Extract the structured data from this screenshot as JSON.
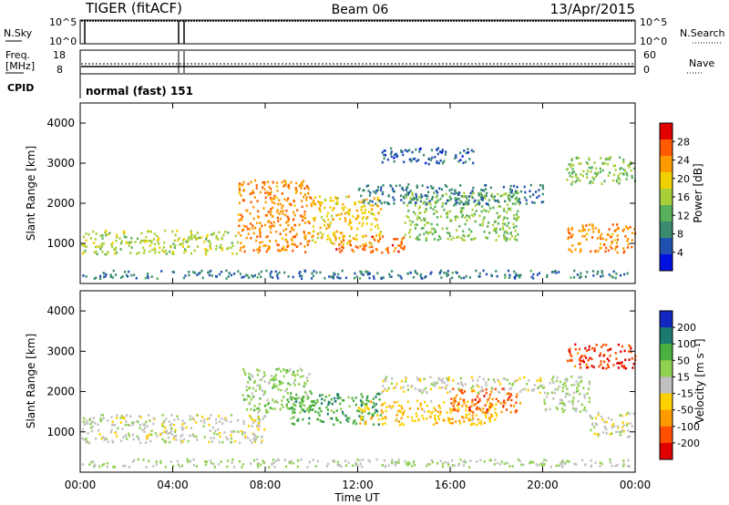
{
  "header": {
    "station": "TIGER (fitACF)",
    "beam": "Beam 06",
    "date": "13/Apr/2015"
  },
  "panels": {
    "nsky": {
      "label": "N.Sky",
      "tick_hi": "10^5",
      "tick_lo": "10^0",
      "right_label": "N.Search"
    },
    "freq": {
      "label_top": "Freq.",
      "label_unit": "[MHz]",
      "ticks_left": [
        "18",
        "8"
      ],
      "ticks_right": [
        "60",
        "0"
      ],
      "right_label": "Nave"
    },
    "cpid": {
      "label": "CPID",
      "text": "normal (fast)  151"
    }
  },
  "colors": {
    "power": [
      "#0010e0",
      "#2050b0",
      "#3a8a70",
      "#5ab05a",
      "#a8cf3a",
      "#f0d000",
      "#ff9a00",
      "#ff5a00",
      "#e00000"
    ],
    "velocity": [
      "#1028c0",
      "#1a7a70",
      "#4cb040",
      "#90d050",
      "#c0c0c0",
      "#ffd000",
      "#ff9a00",
      "#ff5000",
      "#e00000"
    ]
  },
  "chart_data": [
    {
      "type": "heatmap",
      "name": "power",
      "ylabel": "Slant Range [km]",
      "yticks": [
        "4000",
        "3000",
        "2000",
        "1000"
      ],
      "ylim": [
        0,
        4500
      ],
      "xlim": [
        0,
        24
      ],
      "colorbar": {
        "label": "Power [dB]",
        "ticks": [
          "28",
          "24",
          "20",
          "16",
          "12",
          "8",
          "4"
        ],
        "range": [
          0,
          32
        ]
      },
      "scatter_regions": [
        {
          "x": [
            0,
            6.8
          ],
          "y": [
            750,
            1350
          ],
          "level": 16
        },
        {
          "x": [
            6.8,
            10
          ],
          "y": [
            800,
            2600
          ],
          "level": 24
        },
        {
          "x": [
            10,
            13
          ],
          "y": [
            1000,
            2200
          ],
          "level": 20
        },
        {
          "x": [
            11,
            14
          ],
          "y": [
            800,
            1200
          ],
          "level": 26
        },
        {
          "x": [
            14,
            19
          ],
          "y": [
            1100,
            2300
          ],
          "level": 14
        },
        {
          "x": [
            12,
            20
          ],
          "y": [
            2000,
            2500
          ],
          "level": 8
        },
        {
          "x": [
            13,
            17
          ],
          "y": [
            3000,
            3400
          ],
          "level": 6
        },
        {
          "x": [
            21,
            24
          ],
          "y": [
            800,
            1500
          ],
          "level": 24
        },
        {
          "x": [
            21,
            24
          ],
          "y": [
            2500,
            3200
          ],
          "level": 14
        },
        {
          "x": [
            0,
            24
          ],
          "y": [
            150,
            350
          ],
          "level": 8
        }
      ]
    },
    {
      "type": "heatmap",
      "name": "velocity",
      "ylabel": "Slant Range [km]",
      "yticks": [
        "4000",
        "3000",
        "2000",
        "1000"
      ],
      "ylim": [
        0,
        4500
      ],
      "xlim": [
        0,
        24
      ],
      "xlabel": "Time UT",
      "xticks": [
        "00:00",
        "04:00",
        "08:00",
        "12:00",
        "16:00",
        "20:00",
        "00:00"
      ],
      "colorbar": {
        "label": "Velocity [m s⁻¹]",
        "ticks": [
          "200",
          "100",
          "50",
          "15",
          "-15",
          "-50",
          "-100",
          "-200"
        ],
        "range": [
          -250,
          250
        ]
      },
      "scatter_regions": [
        {
          "x": [
            0,
            8
          ],
          "y": [
            750,
            1450
          ],
          "level": 0
        },
        {
          "x": [
            7,
            10
          ],
          "y": [
            1500,
            2600
          ],
          "level": 60
        },
        {
          "x": [
            9,
            13
          ],
          "y": [
            1200,
            2000
          ],
          "level": 120
        },
        {
          "x": [
            12,
            18
          ],
          "y": [
            1200,
            1800
          ],
          "level": -70
        },
        {
          "x": [
            16,
            19
          ],
          "y": [
            1500,
            2100
          ],
          "level": -160
        },
        {
          "x": [
            13,
            20
          ],
          "y": [
            2000,
            2400
          ],
          "level": 0
        },
        {
          "x": [
            20,
            22
          ],
          "y": [
            1500,
            2400
          ],
          "level": 40
        },
        {
          "x": [
            21,
            24
          ],
          "y": [
            2600,
            3200
          ],
          "level": -180
        },
        {
          "x": [
            22,
            24
          ],
          "y": [
            900,
            1500
          ],
          "level": 0
        },
        {
          "x": [
            0,
            24
          ],
          "y": [
            150,
            350
          ],
          "level": 30
        }
      ]
    }
  ]
}
